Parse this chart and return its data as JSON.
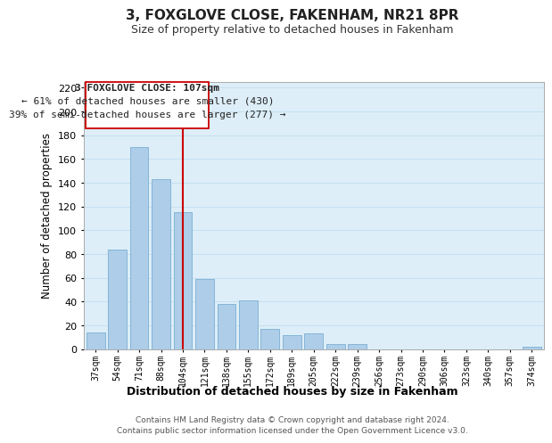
{
  "title": "3, FOXGLOVE CLOSE, FAKENHAM, NR21 8PR",
  "subtitle": "Size of property relative to detached houses in Fakenham",
  "xlabel": "Distribution of detached houses by size in Fakenham",
  "ylabel": "Number of detached properties",
  "bar_color": "#aecde8",
  "bar_edge_color": "#7aafd4",
  "background_color": "#ffffff",
  "plot_bg_color": "#ddeef8",
  "grid_color": "#c5dff0",
  "categories": [
    "37sqm",
    "54sqm",
    "71sqm",
    "88sqm",
    "104sqm",
    "121sqm",
    "138sqm",
    "155sqm",
    "172sqm",
    "189sqm",
    "205sqm",
    "222sqm",
    "239sqm",
    "256sqm",
    "273sqm",
    "290sqm",
    "306sqm",
    "323sqm",
    "340sqm",
    "357sqm",
    "374sqm"
  ],
  "values": [
    14,
    84,
    170,
    143,
    115,
    59,
    38,
    41,
    17,
    12,
    13,
    4,
    4,
    0,
    0,
    0,
    0,
    0,
    0,
    0,
    2
  ],
  "ylim": [
    0,
    225
  ],
  "yticks": [
    0,
    20,
    40,
    60,
    80,
    100,
    120,
    140,
    160,
    180,
    200,
    220
  ],
  "vline_x_index": 4,
  "vline_color": "#cc0000",
  "annotation_lines": [
    "3 FOXGLOVE CLOSE: 107sqm",
    "← 61% of detached houses are smaller (430)",
    "39% of semi-detached houses are larger (277) →"
  ],
  "footer_line1": "Contains HM Land Registry data © Crown copyright and database right 2024.",
  "footer_line2": "Contains public sector information licensed under the Open Government Licence v3.0."
}
